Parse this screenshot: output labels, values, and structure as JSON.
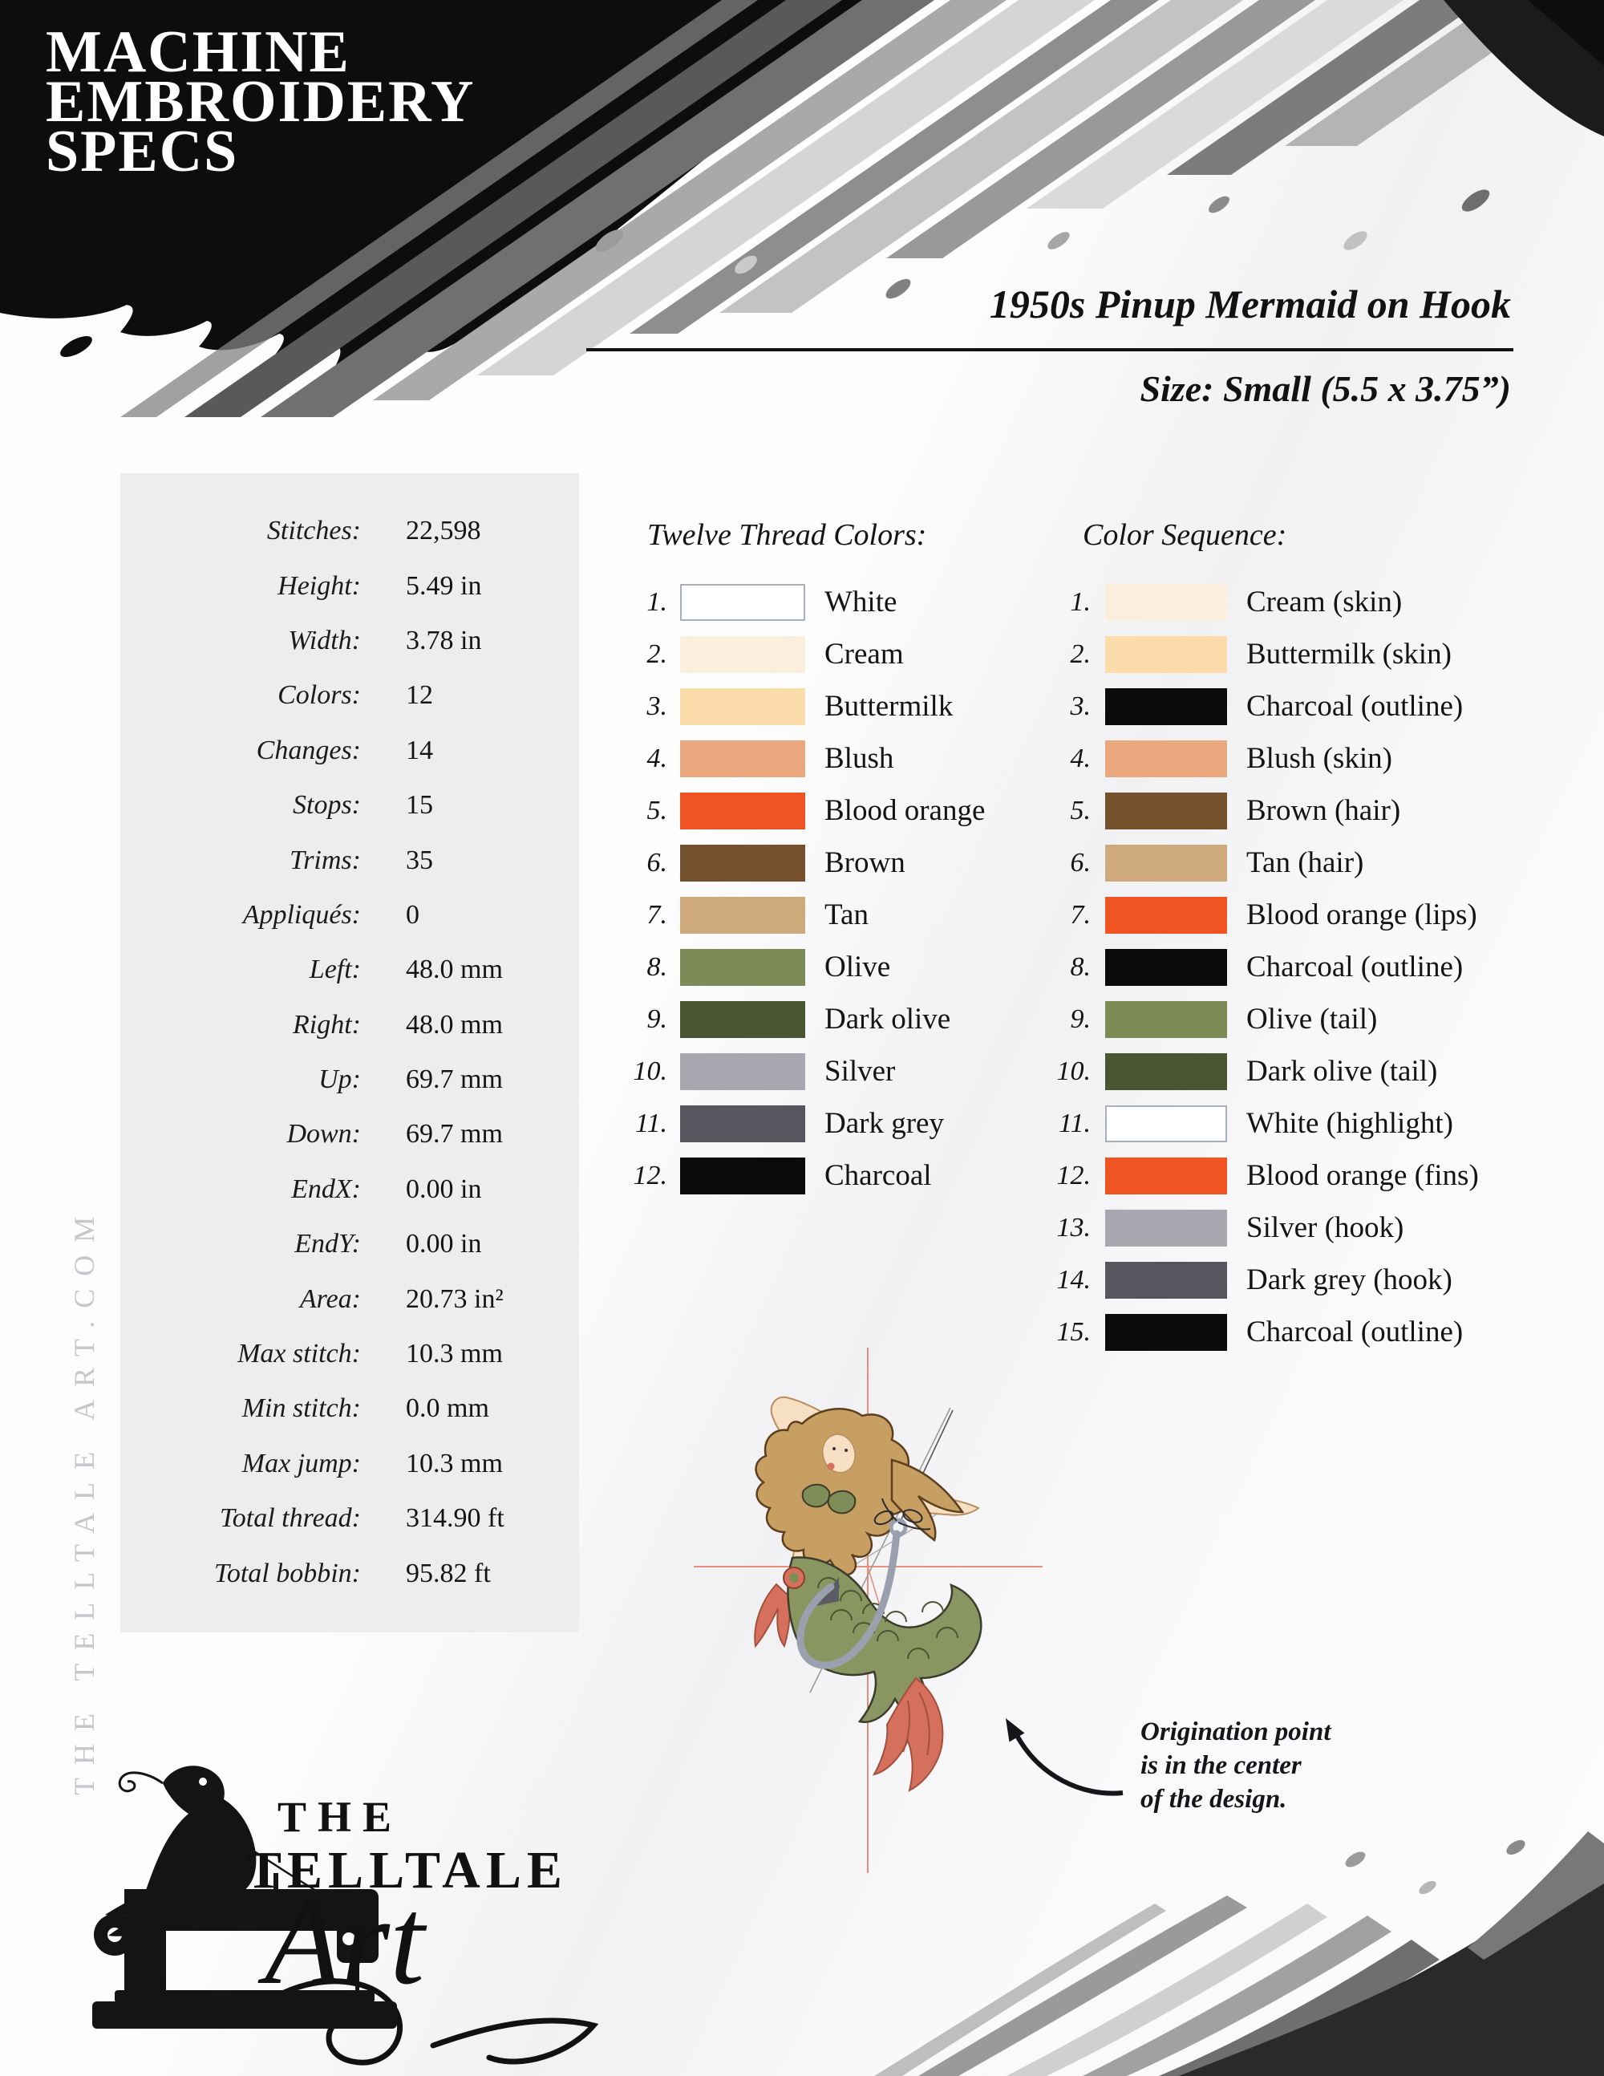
{
  "header": {
    "title_lines": [
      "MACHINE",
      "EMBROIDERY",
      "SPECS"
    ],
    "design_title": "1950s Pinup Mermaid on Hook",
    "size_line": "Size: Small (5.5 x 3.75”)",
    "title_color": "#ffffff",
    "ink_color": "#0d0d0f"
  },
  "stats": {
    "panel_bg": "#ededee",
    "rows": [
      {
        "label": "Stitches:",
        "value": "22,598"
      },
      {
        "label": "Height:",
        "value": "5.49 in"
      },
      {
        "label": "Width:",
        "value": "3.78 in"
      },
      {
        "label": "Colors:",
        "value": "12"
      },
      {
        "label": "Changes:",
        "value": "14"
      },
      {
        "label": "Stops:",
        "value": "15"
      },
      {
        "label": "Trims:",
        "value": "35"
      },
      {
        "label": "Appliqués:",
        "value": "0"
      },
      {
        "label": "Left:",
        "value": "48.0 mm"
      },
      {
        "label": "Right:",
        "value": "48.0 mm"
      },
      {
        "label": "Up:",
        "value": "69.7 mm"
      },
      {
        "label": "Down:",
        "value": "69.7 mm"
      },
      {
        "label": "EndX:",
        "value": "0.00 in"
      },
      {
        "label": "EndY:",
        "value": "0.00 in"
      },
      {
        "label": "Area:",
        "value": "20.73 in²"
      },
      {
        "label": "Max stitch:",
        "value": "10.3 mm"
      },
      {
        "label": "Min stitch:",
        "value": "0.0 mm"
      },
      {
        "label": "Max jump:",
        "value": "10.3 mm"
      },
      {
        "label": "Total thread:",
        "value": "314.90 ft"
      },
      {
        "label": "Total bobbin:",
        "value": "95.82 ft"
      }
    ]
  },
  "thread_colors": {
    "heading": "Twelve Thread Colors:",
    "items": [
      {
        "num": "1.",
        "name": "White",
        "color": "#ffffff",
        "border": true
      },
      {
        "num": "2.",
        "name": "Cream",
        "color": "#fbeedd",
        "border": false
      },
      {
        "num": "3.",
        "name": "Buttermilk",
        "color": "#fddcab",
        "border": false
      },
      {
        "num": "4.",
        "name": "Blush",
        "color": "#e9a87e",
        "border": false
      },
      {
        "num": "5.",
        "name": "Blood orange",
        "color": "#f05423",
        "border": false
      },
      {
        "num": "6.",
        "name": "Brown",
        "color": "#75512d",
        "border": false
      },
      {
        "num": "7.",
        "name": "Tan",
        "color": "#cda97b",
        "border": false
      },
      {
        "num": "8.",
        "name": "Olive",
        "color": "#7c8b55",
        "border": false
      },
      {
        "num": "9.",
        "name": "Dark olive",
        "color": "#4a5631",
        "border": false
      },
      {
        "num": "10.",
        "name": "Silver",
        "color": "#a7a8b0",
        "border": false
      },
      {
        "num": "11.",
        "name": "Dark grey",
        "color": "#55565e",
        "border": false
      },
      {
        "num": "12.",
        "name": "Charcoal",
        "color": "#0b0b0d",
        "border": false
      }
    ]
  },
  "color_sequence": {
    "heading": "Color Sequence:",
    "items": [
      {
        "num": "1.",
        "name": "Cream (skin)",
        "color": "#fbeedd",
        "border": false
      },
      {
        "num": "2.",
        "name": "Buttermilk (skin)",
        "color": "#fddcab",
        "border": false
      },
      {
        "num": "3.",
        "name": "Charcoal (outline)",
        "color": "#0b0b0d",
        "border": false
      },
      {
        "num": "4.",
        "name": "Blush (skin)",
        "color": "#e9a87e",
        "border": false
      },
      {
        "num": "5.",
        "name": "Brown (hair)",
        "color": "#75512d",
        "border": false
      },
      {
        "num": "6.",
        "name": "Tan (hair)",
        "color": "#cda97b",
        "border": false
      },
      {
        "num": "7.",
        "name": "Blood orange (lips)",
        "color": "#f05423",
        "border": false
      },
      {
        "num": "8.",
        "name": "Charcoal (outline)",
        "color": "#0b0b0d",
        "border": false
      },
      {
        "num": "9.",
        "name": "Olive (tail)",
        "color": "#7c8b55",
        "border": false
      },
      {
        "num": "10.",
        "name": "Dark olive (tail)",
        "color": "#4a5631",
        "border": false
      },
      {
        "num": "11.",
        "name": "White (highlight)",
        "color": "#ffffff",
        "border": true
      },
      {
        "num": "12.",
        "name": "Blood orange (fins)",
        "color": "#f05423",
        "border": false
      },
      {
        "num": "13.",
        "name": "Silver (hook)",
        "color": "#a7a8b0",
        "border": false
      },
      {
        "num": "14.",
        "name": "Dark grey (hook)",
        "color": "#55565e",
        "border": false
      },
      {
        "num": "15.",
        "name": "Charcoal (outline)",
        "color": "#0b0b0d",
        "border": false
      }
    ]
  },
  "annotation": {
    "lines": [
      "Origination point",
      "is in the center",
      "of the design."
    ]
  },
  "logo": {
    "word_the": "THE",
    "word_telltale": "TELLTALE",
    "word_art": "Art"
  },
  "site_vertical": "THE TELLTALE ART.COM",
  "design_colors": {
    "crosshair": "#e78f7a",
    "hook": "#9aa0ad",
    "hook_dark": "#5b5c64",
    "skin": "#f6dfc2",
    "hair": "#c79f63",
    "tail": "#8a9662",
    "tail_dark": "#4a5631",
    "fin": "#d4705b",
    "panel_grey": "#ededee",
    "site_text_grey": "#c6c7cb"
  }
}
